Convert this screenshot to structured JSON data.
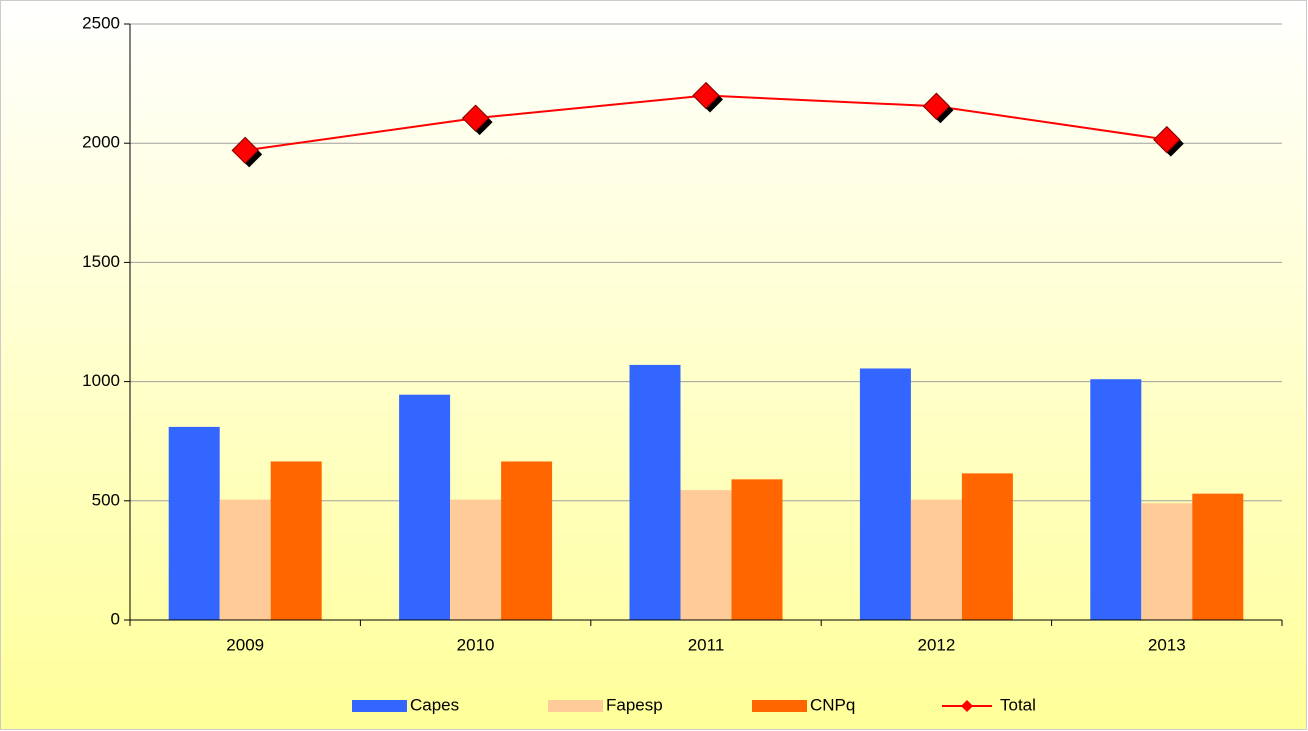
{
  "chart_data": {
    "type": "bar",
    "categories": [
      "2009",
      "2010",
      "2011",
      "2012",
      "2013"
    ],
    "series": [
      {
        "name": "Capes",
        "color": "#3366ff",
        "values": [
          810,
          945,
          1070,
          1055,
          1010
        ]
      },
      {
        "name": "Fapesp",
        "color": "#ffcc99",
        "values": [
          505,
          505,
          545,
          505,
          490
        ]
      },
      {
        "name": "CNPq",
        "color": "#ff6600",
        "values": [
          665,
          665,
          590,
          615,
          530
        ]
      },
      {
        "name": "Total",
        "type": "line",
        "color": "#ff0000",
        "values": [
          1970,
          2105,
          2200,
          2155,
          2015
        ]
      }
    ],
    "ylim": [
      0,
      2500
    ],
    "yticks": [
      0,
      500,
      1000,
      1500,
      2000,
      2500
    ],
    "grid": true,
    "legend": "bottom"
  }
}
